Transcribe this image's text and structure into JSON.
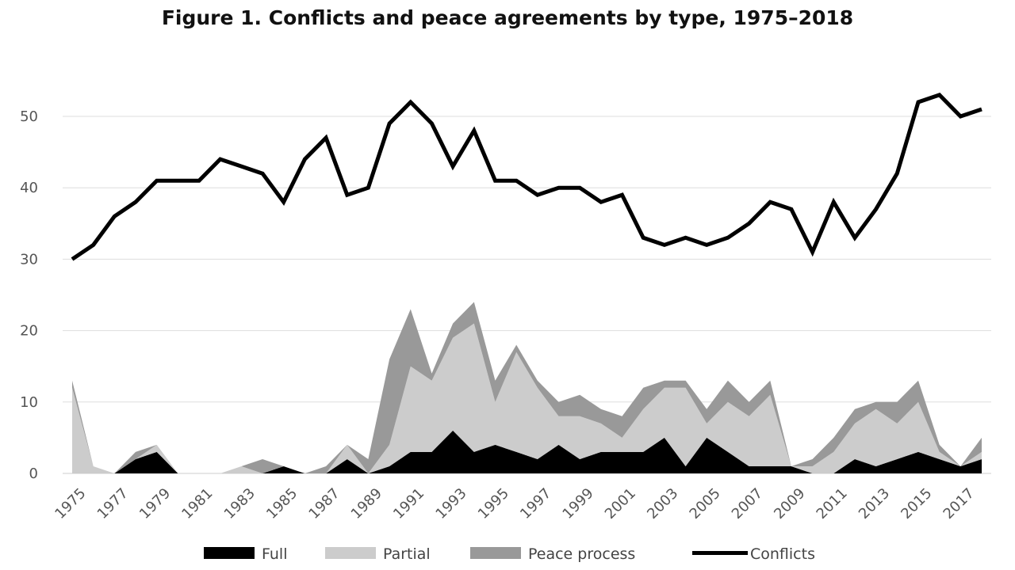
{
  "chart_data": {
    "type": "area",
    "title": "Figure 1. Conflicts and peace agreements by type, 1975–2018",
    "xlabel": "",
    "ylabel": "",
    "ylim": [
      0,
      55
    ],
    "y_ticks": [
      0,
      10,
      20,
      30,
      40,
      50
    ],
    "x_tick_labels": [
      "1975",
      "1977",
      "1979",
      "1981",
      "1983",
      "1985",
      "1987",
      "1989",
      "1991",
      "1993",
      "1995",
      "1997",
      "1999",
      "2001",
      "2003",
      "2005",
      "2007",
      "2009",
      "2011",
      "2013",
      "2015",
      "2017"
    ],
    "grid": true,
    "legend_position": "bottom",
    "stacked": true,
    "x": [
      1975,
      1976,
      1977,
      1978,
      1979,
      1980,
      1981,
      1982,
      1983,
      1984,
      1985,
      1986,
      1987,
      1988,
      1989,
      1990,
      1991,
      1992,
      1993,
      1994,
      1995,
      1996,
      1997,
      1998,
      1999,
      2000,
      2001,
      2002,
      2003,
      2004,
      2005,
      2006,
      2007,
      2008,
      2009,
      2010,
      2011,
      2012,
      2013,
      2014,
      2015,
      2016,
      2017,
      2018
    ],
    "series": [
      {
        "name": "Full",
        "kind": "area",
        "color": "#000000",
        "values": [
          0,
          0,
          0,
          2,
          3,
          0,
          0,
          0,
          0,
          0,
          1,
          0,
          0,
          2,
          0,
          1,
          3,
          3,
          6,
          3,
          4,
          3,
          2,
          4,
          2,
          3,
          3,
          3,
          5,
          1,
          5,
          3,
          1,
          1,
          1,
          0,
          0,
          2,
          1,
          2,
          3,
          2,
          1,
          2
        ]
      },
      {
        "name": "Partial",
        "kind": "area",
        "color": "#cccccc",
        "values": [
          12,
          1,
          0,
          0,
          1,
          0,
          0,
          0,
          1,
          0,
          0,
          0,
          0,
          2,
          0,
          3,
          12,
          10,
          13,
          18,
          6,
          14,
          10,
          4,
          6,
          4,
          2,
          6,
          7,
          11,
          2,
          7,
          7,
          10,
          0,
          1,
          3,
          5,
          8,
          5,
          7,
          1,
          0,
          1
        ]
      },
      {
        "name": "Peace process",
        "kind": "area",
        "color": "#999999",
        "values": [
          1,
          0,
          0,
          1,
          0,
          0,
          0,
          0,
          0,
          2,
          0,
          0,
          1,
          0,
          2,
          12,
          8,
          1,
          2,
          3,
          3,
          1,
          1,
          2,
          3,
          2,
          3,
          3,
          1,
          1,
          2,
          3,
          2,
          2,
          0,
          1,
          2,
          2,
          1,
          3,
          3,
          1,
          0,
          2
        ]
      },
      {
        "name": "Conflicts",
        "kind": "line",
        "color": "#000000",
        "values": [
          30,
          32,
          36,
          38,
          41,
          41,
          41,
          44,
          43,
          42,
          38,
          44,
          47,
          39,
          40,
          49,
          52,
          49,
          43,
          48,
          41,
          41,
          39,
          40,
          40,
          38,
          39,
          33,
          32,
          33,
          32,
          33,
          35,
          38,
          37,
          31,
          38,
          33,
          37,
          42,
          52,
          53,
          50,
          51
        ]
      }
    ]
  }
}
